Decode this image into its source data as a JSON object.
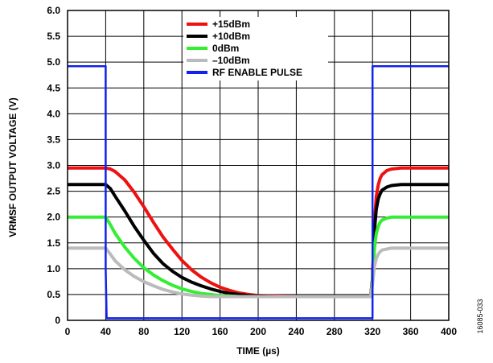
{
  "chart_data": {
    "type": "line",
    "title": "",
    "xlabel": "TIME (µs)",
    "ylabel": "VRMSF OUTPUT VOLTAGE (V)",
    "xlim": [
      0,
      400
    ],
    "ylim": [
      0,
      6.0
    ],
    "grid": true,
    "legend_position": "top-center",
    "x_ticks": [
      "0",
      "40",
      "80",
      "120",
      "160",
      "200",
      "240",
      "280",
      "320",
      "360",
      "400"
    ],
    "y_ticks": [
      "0",
      "0.5",
      "1.0",
      "1.5",
      "2.0",
      "2.5",
      "3.0",
      "3.5",
      "4.0",
      "4.5",
      "5.0",
      "5.5",
      "6.0"
    ],
    "figure_id": "16085-033",
    "series": [
      {
        "name": "+15dBm",
        "color": "#ee1111",
        "x": [
          0,
          40,
          45,
          50,
          60,
          70,
          80,
          90,
          100,
          110,
          120,
          130,
          140,
          150,
          160,
          170,
          180,
          190,
          200,
          220,
          240,
          260,
          280,
          300,
          318,
          320,
          322,
          324,
          326,
          328,
          330,
          335,
          340,
          350,
          360,
          380,
          400
        ],
        "y": [
          2.95,
          2.95,
          2.93,
          2.88,
          2.72,
          2.48,
          2.2,
          1.9,
          1.62,
          1.38,
          1.16,
          0.98,
          0.84,
          0.73,
          0.64,
          0.58,
          0.53,
          0.5,
          0.48,
          0.47,
          0.46,
          0.46,
          0.46,
          0.46,
          0.46,
          0.8,
          1.9,
          2.4,
          2.62,
          2.75,
          2.82,
          2.9,
          2.93,
          2.95,
          2.95,
          2.95,
          2.95
        ]
      },
      {
        "name": "+10dBm",
        "color": "#000000",
        "x": [
          0,
          40,
          45,
          50,
          60,
          70,
          80,
          90,
          100,
          110,
          120,
          130,
          140,
          150,
          160,
          170,
          180,
          190,
          200,
          220,
          240,
          260,
          280,
          300,
          318,
          320,
          322,
          324,
          326,
          328,
          330,
          335,
          340,
          350,
          360,
          380,
          400
        ],
        "y": [
          2.63,
          2.63,
          2.55,
          2.4,
          2.12,
          1.82,
          1.55,
          1.3,
          1.1,
          0.95,
          0.83,
          0.74,
          0.67,
          0.61,
          0.56,
          0.52,
          0.5,
          0.48,
          0.47,
          0.46,
          0.46,
          0.46,
          0.46,
          0.46,
          0.46,
          0.8,
          1.75,
          2.15,
          2.35,
          2.45,
          2.52,
          2.58,
          2.61,
          2.63,
          2.63,
          2.63,
          2.63
        ]
      },
      {
        "name": "0dBm",
        "color": "#33ee33",
        "x": [
          0,
          40,
          45,
          50,
          60,
          70,
          80,
          90,
          100,
          110,
          120,
          130,
          140,
          150,
          160,
          170,
          180,
          190,
          200,
          220,
          240,
          260,
          280,
          300,
          318,
          320,
          322,
          324,
          326,
          328,
          330,
          335,
          340,
          350,
          360,
          380,
          400
        ],
        "y": [
          2.0,
          2.0,
          1.85,
          1.68,
          1.42,
          1.2,
          1.02,
          0.88,
          0.77,
          0.68,
          0.61,
          0.56,
          0.52,
          0.5,
          0.48,
          0.47,
          0.46,
          0.46,
          0.46,
          0.46,
          0.46,
          0.46,
          0.46,
          0.46,
          0.46,
          0.75,
          1.4,
          1.68,
          1.82,
          1.9,
          1.94,
          1.98,
          2.0,
          2.0,
          2.0,
          2.0,
          2.0
        ]
      },
      {
        "name": "–10dBm",
        "color": "#bbbbbb",
        "x": [
          0,
          40,
          45,
          50,
          60,
          70,
          80,
          90,
          100,
          110,
          120,
          130,
          140,
          150,
          160,
          170,
          180,
          190,
          200,
          220,
          240,
          260,
          280,
          300,
          318,
          320,
          322,
          324,
          326,
          328,
          330,
          335,
          340,
          350,
          360,
          380,
          400
        ],
        "y": [
          1.4,
          1.4,
          1.28,
          1.15,
          0.98,
          0.85,
          0.75,
          0.67,
          0.6,
          0.55,
          0.51,
          0.49,
          0.47,
          0.46,
          0.46,
          0.46,
          0.46,
          0.46,
          0.46,
          0.46,
          0.46,
          0.46,
          0.46,
          0.46,
          0.46,
          0.7,
          1.05,
          1.2,
          1.28,
          1.33,
          1.36,
          1.38,
          1.4,
          1.4,
          1.4,
          1.4,
          1.4
        ]
      },
      {
        "name": "RF ENABLE PULSE",
        "color": "#1122ee",
        "x": [
          0,
          40,
          40,
          41,
          320,
          320,
          400
        ],
        "y": [
          4.92,
          4.92,
          1.0,
          0.04,
          0.04,
          4.92,
          4.92
        ]
      }
    ]
  }
}
